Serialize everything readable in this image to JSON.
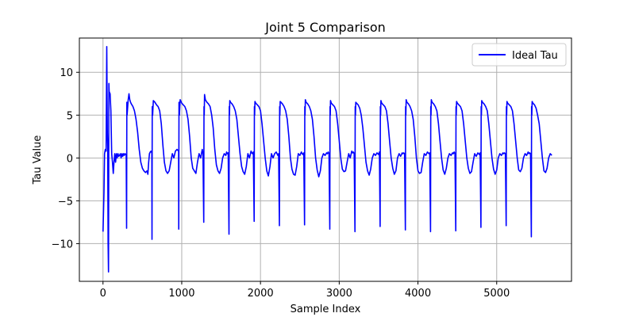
{
  "chart_data": {
    "type": "line",
    "title": "Joint 5 Comparison",
    "xlabel": "Sample Index",
    "ylabel": "Tau Value",
    "xlim": [
      -300,
      5950
    ],
    "ylim": [
      -14.4,
      14.0
    ],
    "xticks": [
      0,
      1000,
      2000,
      3000,
      4000,
      5000
    ],
    "yticks": [
      -10,
      -5,
      0,
      5,
      10
    ],
    "xtick_labels": [
      "0",
      "1000",
      "2000",
      "3000",
      "4000",
      "5000"
    ],
    "ytick_labels": [
      "−10",
      "−5",
      "0",
      "5",
      "10"
    ],
    "grid": true,
    "legend": {
      "position": "upper right"
    },
    "series": [
      {
        "name": "Ideal Tau",
        "color": "#0000ff",
        "x": [
          0,
          12,
          20,
          30,
          40,
          48,
          55,
          60,
          65,
          70,
          73,
          75,
          78,
          80,
          85,
          90,
          95,
          100,
          105,
          110,
          115,
          120,
          130,
          140,
          150,
          160,
          170,
          180,
          190,
          200,
          210,
          220,
          230,
          240,
          250,
          260,
          270,
          280,
          290,
          295,
          300,
          303,
          306,
          310,
          320,
          330,
          340,
          350,
          360,
          380,
          400,
          420,
          440,
          460,
          480,
          500,
          520,
          540,
          560,
          570,
          580,
          590,
          600,
          610,
          620,
          622,
          625,
          630,
          640,
          660,
          680,
          700,
          720,
          740,
          760,
          780,
          800,
          820,
          840,
          860,
          880,
          900,
          920,
          940,
          960,
          962,
          965,
          970,
          980,
          990,
          1000,
          1020,
          1040,
          1060,
          1080,
          1100,
          1120,
          1140,
          1160,
          1180,
          1200,
          1220,
          1240,
          1250,
          1260,
          1270,
          1280,
          1283,
          1286,
          1290,
          1300,
          1320,
          1340,
          1360,
          1380,
          1400,
          1420,
          1440,
          1460,
          1480,
          1500,
          1520,
          1540,
          1560,
          1570,
          1580,
          1590,
          1600,
          1603,
          1606,
          1610,
          1620,
          1640,
          1660,
          1680,
          1700,
          1720,
          1740,
          1760,
          1780,
          1800,
          1820,
          1840,
          1860,
          1880,
          1890,
          1900,
          1910,
          1920,
          1923,
          1926,
          1930,
          1940,
          1960,
          1980,
          2000,
          2020,
          2040,
          2060,
          2080,
          2100,
          2120,
          2140,
          2160,
          2180,
          2200,
          2210,
          2220,
          2230,
          2240,
          2243,
          2246,
          2250,
          2260,
          2280,
          2300,
          2320,
          2340,
          2360,
          2380,
          2400,
          2420,
          2440,
          2460,
          2480,
          2500,
          2520,
          2530,
          2540,
          2550,
          2560,
          2563,
          2566,
          2570,
          2580,
          2600,
          2620,
          2640,
          2660,
          2680,
          2700,
          2720,
          2740,
          2760,
          2780,
          2800,
          2820,
          2840,
          2850,
          2860,
          2870,
          2880,
          2883,
          2886,
          2890,
          2900,
          2920,
          2940,
          2960,
          2980,
          3000,
          3020,
          3040,
          3060,
          3080,
          3100,
          3120,
          3140,
          3160,
          3170,
          3180,
          3190,
          3200,
          3203,
          3206,
          3210,
          3220,
          3240,
          3260,
          3280,
          3300,
          3320,
          3340,
          3360,
          3380,
          3400,
          3420,
          3440,
          3460,
          3480,
          3490,
          3500,
          3510,
          3520,
          3523,
          3526,
          3530,
          3540,
          3560,
          3580,
          3600,
          3620,
          3640,
          3660,
          3680,
          3700,
          3720,
          3740,
          3760,
          3780,
          3800,
          3810,
          3820,
          3830,
          3840,
          3843,
          3846,
          3850,
          3860,
          3880,
          3900,
          3920,
          3940,
          3960,
          3980,
          4000,
          4020,
          4040,
          4060,
          4080,
          4100,
          4120,
          4130,
          4140,
          4150,
          4160,
          4163,
          4166,
          4170,
          4180,
          4200,
          4220,
          4240,
          4260,
          4280,
          4300,
          4320,
          4340,
          4360,
          4380,
          4400,
          4420,
          4440,
          4450,
          4460,
          4470,
          4480,
          4483,
          4486,
          4490,
          4500,
          4520,
          4540,
          4560,
          4580,
          4600,
          4620,
          4640,
          4660,
          4680,
          4700,
          4720,
          4740,
          4760,
          4770,
          4780,
          4790,
          4800,
          4803,
          4806,
          4810,
          4820,
          4840,
          4860,
          4880,
          4900,
          4920,
          4940,
          4960,
          4980,
          5000,
          5020,
          5040,
          5060,
          5080,
          5090,
          5100,
          5110,
          5120,
          5123,
          5126,
          5130,
          5140,
          5160,
          5180,
          5200,
          5220,
          5240,
          5260,
          5280,
          5300,
          5320,
          5340,
          5360,
          5380,
          5400,
          5410,
          5420,
          5430,
          5440,
          5443,
          5446,
          5450,
          5460,
          5480,
          5500,
          5520,
          5540,
          5560,
          5580,
          5600,
          5620,
          5640,
          5660,
          5680,
          5700
        ],
        "y": [
          -8.6,
          -4.0,
          0.5,
          1.0,
          0.8,
          13.0,
          3.0,
          1.2,
          -10.0,
          -13.3,
          0.5,
          8.7,
          7.8,
          7.7,
          7.6,
          7.5,
          6.5,
          5.5,
          3.0,
          0.5,
          0.0,
          -0.5,
          -1.8,
          -0.5,
          0.5,
          -0.5,
          0.5,
          0.0,
          0.5,
          0.2,
          0.3,
          0.5,
          0.0,
          0.5,
          0.2,
          0.5,
          0.3,
          0.5,
          0.4,
          0.3,
          -8.2,
          6.5,
          5.0,
          5.5,
          6.8,
          7.5,
          6.8,
          6.5,
          6.3,
          6.0,
          5.5,
          4.5,
          3.0,
          1.0,
          -0.5,
          -1.2,
          -1.5,
          -1.7,
          -1.5,
          -1.9,
          -0.5,
          0.5,
          0.7,
          0.8,
          0.6,
          -9.5,
          6.0,
          5.0,
          6.7,
          6.5,
          6.2,
          6.0,
          5.5,
          4.0,
          1.5,
          -0.5,
          -1.5,
          -1.8,
          -1.5,
          -0.5,
          0.5,
          0.0,
          0.8,
          1.0,
          0.8,
          -8.3,
          6.5,
          5.0,
          6.8,
          6.6,
          6.4,
          6.2,
          6.0,
          5.5,
          4.5,
          2.5,
          0.0,
          -1.2,
          -1.5,
          -1.8,
          -0.5,
          0.5,
          0.0,
          0.5,
          1.0,
          0.5,
          -7.5,
          6.0,
          5.0,
          7.4,
          6.8,
          6.5,
          6.3,
          6.0,
          5.0,
          3.5,
          1.0,
          -0.8,
          -1.5,
          -1.8,
          -1.2,
          0.0,
          0.5,
          0.3,
          0.7,
          0.5,
          0.6,
          -8.9,
          6.0,
          5.0,
          6.7,
          6.5,
          6.3,
          6.0,
          5.5,
          4.5,
          2.5,
          0.5,
          -1.0,
          -1.6,
          -1.9,
          -1.0,
          0.5,
          0.0,
          0.8,
          0.6,
          0.5,
          0.7,
          -7.4,
          6.0,
          5.0,
          6.6,
          6.4,
          6.2,
          6.0,
          5.5,
          4.0,
          2.0,
          0.0,
          -1.5,
          -2.1,
          -1.0,
          0.5,
          0.0,
          0.5,
          0.7,
          0.5,
          0.3,
          0.5,
          -7.9,
          6.0,
          5.0,
          6.6,
          6.5,
          6.3,
          6.0,
          5.5,
          4.5,
          2.5,
          0.0,
          -1.3,
          -1.9,
          -2.0,
          -1.0,
          0.5,
          0.3,
          0.7,
          0.5,
          0.4,
          0.6,
          -7.8,
          6.0,
          5.0,
          6.8,
          6.5,
          6.3,
          6.0,
          5.5,
          4.5,
          2.5,
          0.0,
          -1.4,
          -2.2,
          -1.5,
          0.0,
          0.5,
          0.3,
          0.6,
          0.5,
          0.7,
          0.5,
          -8.3,
          6.0,
          5.0,
          6.7,
          6.4,
          6.2,
          6.0,
          5.5,
          4.0,
          2.0,
          0.0,
          -1.3,
          -1.6,
          -1.5,
          -0.5,
          0.5,
          0.0,
          0.8,
          0.6,
          0.7,
          0.5,
          -8.6,
          6.0,
          5.0,
          6.5,
          6.4,
          6.2,
          5.8,
          5.0,
          3.5,
          1.5,
          -0.5,
          -1.5,
          -2.0,
          -1.3,
          0.0,
          0.5,
          0.3,
          0.6,
          0.5,
          0.4,
          0.7,
          -8.0,
          6.0,
          5.0,
          6.7,
          6.4,
          6.2,
          6.0,
          5.5,
          4.0,
          2.0,
          0.0,
          -1.2,
          -1.9,
          -1.5,
          0.0,
          0.5,
          0.2,
          0.6,
          0.5,
          0.6,
          0.5,
          -8.4,
          6.0,
          5.0,
          6.8,
          6.5,
          6.3,
          6.0,
          5.5,
          4.5,
          2.5,
          0.0,
          -1.5,
          -1.8,
          -1.7,
          -0.5,
          0.5,
          0.3,
          0.7,
          0.6,
          0.5,
          0.6,
          -8.6,
          6.0,
          5.0,
          6.8,
          6.5,
          6.3,
          6.0,
          5.5,
          4.0,
          2.0,
          0.0,
          -1.4,
          -1.9,
          -1.2,
          0.0,
          0.5,
          0.3,
          0.6,
          0.5,
          0.7,
          0.5,
          -8.5,
          6.0,
          5.0,
          6.6,
          6.4,
          6.2,
          6.0,
          5.5,
          4.0,
          2.0,
          0.0,
          -1.2,
          -1.8,
          -1.6,
          -0.5,
          0.5,
          0.2,
          0.6,
          0.5,
          0.4,
          0.6,
          -8.1,
          6.0,
          5.0,
          6.7,
          6.5,
          6.3,
          6.0,
          5.5,
          4.0,
          2.0,
          0.0,
          -1.3,
          -1.9,
          -1.4,
          0.0,
          0.5,
          0.3,
          0.6,
          0.5,
          0.6,
          0.5,
          -7.9,
          6.0,
          5.0,
          6.6,
          6.4,
          6.2,
          6.0,
          5.5,
          4.0,
          2.0,
          0.0,
          -1.4,
          -1.6,
          -1.2,
          0.0,
          0.5,
          0.3,
          0.7,
          0.5,
          0.6,
          0.5,
          -9.2,
          6.0,
          5.0,
          6.6,
          6.4,
          6.2,
          5.8,
          5.0,
          4.0,
          2.0,
          0.0,
          -1.5,
          -1.7,
          -1.2,
          0.0,
          0.5,
          0.3
        ]
      }
    ]
  }
}
